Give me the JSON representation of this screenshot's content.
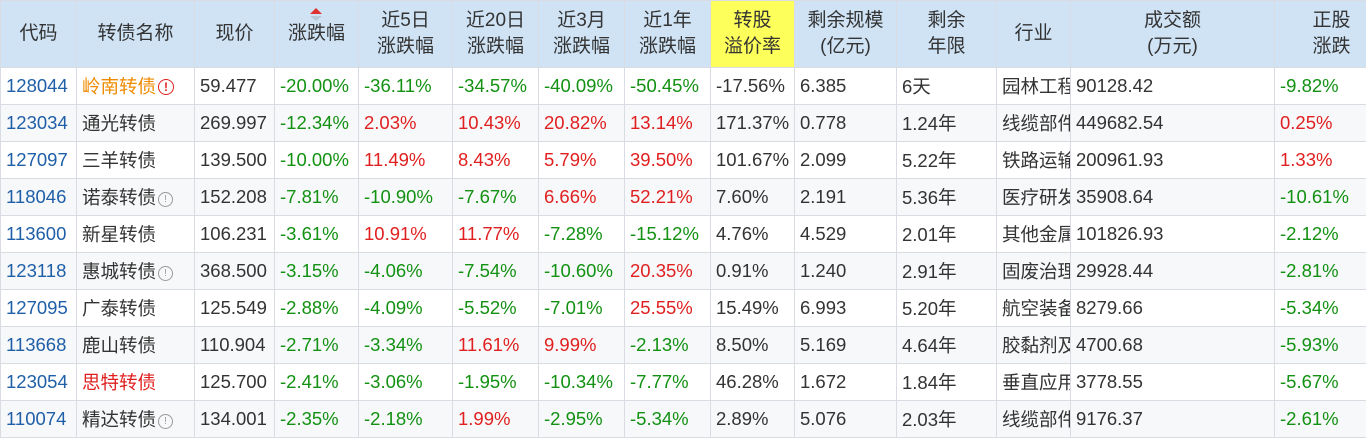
{
  "headers": {
    "code": "代码",
    "name": "转债名称",
    "price": "现价",
    "chg": "涨跌幅",
    "chg5_l1": "近5日",
    "chg5_l2": "涨跌幅",
    "chg20_l1": "近20日",
    "chg20_l2": "涨跌幅",
    "chg3m_l1": "近3月",
    "chg3m_l2": "涨跌幅",
    "chg1y_l1": "近1年",
    "chg1y_l2": "涨跌幅",
    "prem_l1": "转股",
    "prem_l2": "溢价率",
    "scale_l1": "剩余规模",
    "scale_l2": "(亿元)",
    "years_l1": "剩余",
    "years_l2": "年限",
    "industry": "行业",
    "turnover_l1": "成交额",
    "turnover_l2": "(万元)",
    "stock_l1": "正股",
    "stock_l2": "涨跌"
  },
  "colors": {
    "header_bg": "#cfe3f5",
    "highlight_col": "#fdff5a",
    "up": "#e02020",
    "down": "#129112",
    "code": "#1f5fa8",
    "warn_name": "#f08a00"
  },
  "sort": {
    "column": "chg",
    "direction": "asc"
  },
  "rows": [
    {
      "code": "128044",
      "name": "岭南转债",
      "name_color": "orange",
      "icon": "warning-icon",
      "icon_glyph": "!",
      "price": "59.477",
      "chg": "-20.00%",
      "chg5": "-36.11%",
      "chg20": "-34.57%",
      "chg3m": "-40.09%",
      "chg1y": "-50.45%",
      "prem": "-17.56%",
      "scale": "6.385",
      "years": "6天",
      "industry": "园林工程",
      "turnover": "90128.42",
      "stock": "-9.82%"
    },
    {
      "code": "123034",
      "name": "通光转债",
      "name_color": "",
      "icon": "",
      "price": "269.997",
      "chg": "-12.34%",
      "chg5": "2.03%",
      "chg20": "10.43%",
      "chg3m": "20.82%",
      "chg1y": "13.14%",
      "prem": "171.37%",
      "scale": "0.778",
      "years": "1.24年",
      "industry": "线缆部件及其他",
      "turnover": "449682.54",
      "stock": "0.25%"
    },
    {
      "code": "127097",
      "name": "三羊转债",
      "name_color": "",
      "icon": "",
      "price": "139.500",
      "chg": "-10.00%",
      "chg5": "11.49%",
      "chg20": "8.43%",
      "chg3m": "5.79%",
      "chg1y": "39.50%",
      "prem": "101.67%",
      "scale": "2.099",
      "years": "5.22年",
      "industry": "铁路运输",
      "turnover": "200961.93",
      "stock": "1.33%"
    },
    {
      "code": "118046",
      "name": "诺泰转债",
      "name_color": "",
      "icon": "info-icon",
      "icon_glyph": "!",
      "price": "152.208",
      "chg": "-7.81%",
      "chg5": "-10.90%",
      "chg20": "-7.67%",
      "chg3m": "6.66%",
      "chg1y": "52.21%",
      "prem": "7.60%",
      "scale": "2.191",
      "years": "5.36年",
      "industry": "医疗研发外包",
      "turnover": "35908.64",
      "stock": "-10.61%"
    },
    {
      "code": "113600",
      "name": "新星转债",
      "name_color": "",
      "icon": "",
      "price": "106.231",
      "chg": "-3.61%",
      "chg5": "10.91%",
      "chg20": "11.77%",
      "chg3m": "-7.28%",
      "chg1y": "-15.12%",
      "prem": "4.76%",
      "scale": "4.529",
      "years": "2.01年",
      "industry": "其他金属新材料",
      "turnover": "101826.93",
      "stock": "-2.12%"
    },
    {
      "code": "123118",
      "name": "惠城转债",
      "name_color": "",
      "icon": "info-icon",
      "icon_glyph": "!",
      "price": "368.500",
      "chg": "-3.15%",
      "chg5": "-4.06%",
      "chg20": "-7.54%",
      "chg3m": "-10.60%",
      "chg1y": "20.35%",
      "prem": "0.91%",
      "scale": "1.240",
      "years": "2.91年",
      "industry": "固废治理",
      "turnover": "29928.44",
      "stock": "-2.81%"
    },
    {
      "code": "127095",
      "name": "广泰转债",
      "name_color": "",
      "icon": "",
      "price": "125.549",
      "chg": "-2.88%",
      "chg5": "-4.09%",
      "chg20": "-5.52%",
      "chg3m": "-7.01%",
      "chg1y": "25.55%",
      "prem": "15.49%",
      "scale": "6.993",
      "years": "5.20年",
      "industry": "航空装备",
      "turnover": "8279.66",
      "stock": "-5.34%"
    },
    {
      "code": "113668",
      "name": "鹿山转债",
      "name_color": "",
      "icon": "",
      "price": "110.904",
      "chg": "-2.71%",
      "chg5": "-3.34%",
      "chg20": "11.61%",
      "chg3m": "9.99%",
      "chg1y": "-2.13%",
      "prem": "8.50%",
      "scale": "5.169",
      "years": "4.64年",
      "industry": "胶黏剂及胶带",
      "turnover": "4700.68",
      "stock": "-5.93%"
    },
    {
      "code": "123054",
      "name": "思特转债",
      "name_color": "red",
      "icon": "",
      "price": "125.700",
      "chg": "-2.41%",
      "chg5": "-3.06%",
      "chg20": "-1.95%",
      "chg3m": "-10.34%",
      "chg1y": "-7.77%",
      "prem": "46.28%",
      "scale": "1.672",
      "years": "1.84年",
      "industry": "垂直应用软件",
      "turnover": "3778.55",
      "stock": "-5.67%"
    },
    {
      "code": "110074",
      "name": "精达转债",
      "name_color": "",
      "icon": "info-icon",
      "icon_glyph": "!",
      "price": "134.001",
      "chg": "-2.35%",
      "chg5": "-2.18%",
      "chg20": "1.99%",
      "chg3m": "-2.95%",
      "chg1y": "-5.34%",
      "prem": "2.89%",
      "scale": "5.076",
      "years": "2.03年",
      "industry": "线缆部件及其他",
      "turnover": "9176.37",
      "stock": "-2.61%"
    }
  ]
}
